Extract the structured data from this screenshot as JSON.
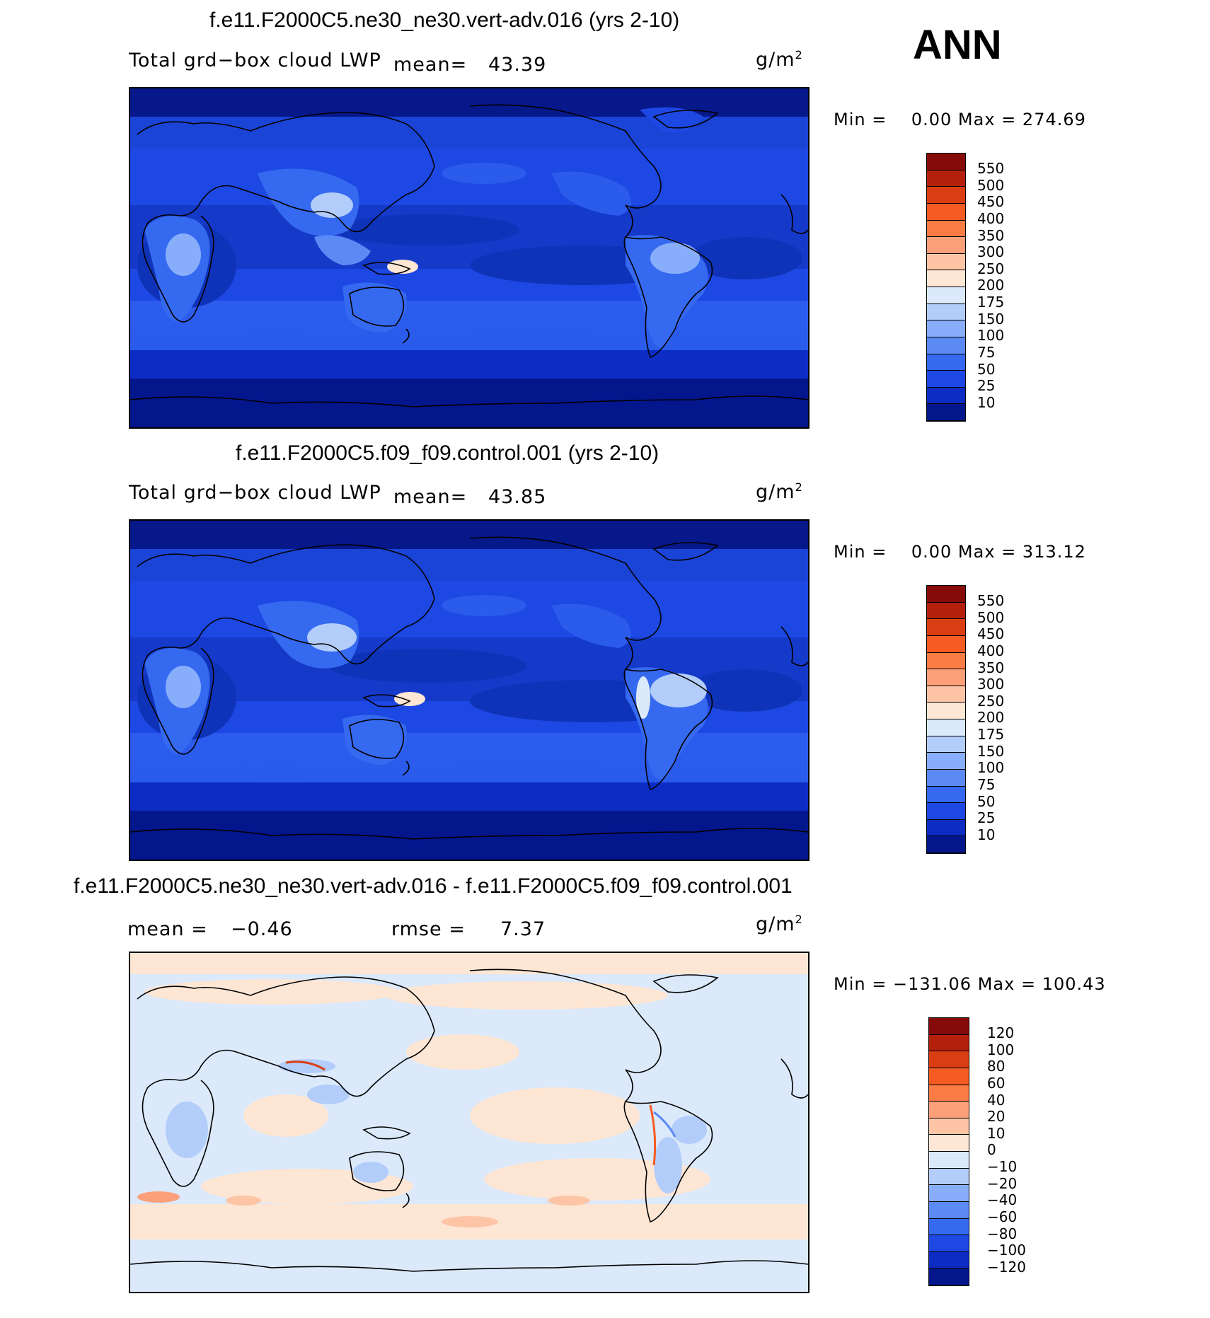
{
  "season": "ANN",
  "panels": [
    {
      "title": "f.e11.F2000C5.ne30_ne30.vert-adv.016 (yrs 2-10)",
      "variable": "Total grd−box cloud LWP",
      "stat1_label": "mean=",
      "stat1_value": "43.39",
      "units_base": "g/m",
      "units_exp": "2",
      "min_label": "Min =",
      "min_value": "0.00",
      "max_label": "Max =",
      "max_value": "274.69",
      "colorbar": {
        "labels": [
          "550",
          "500",
          "450",
          "400",
          "350",
          "300",
          "250",
          "200",
          "175",
          "150",
          "100",
          "75",
          "50",
          "25",
          "10"
        ],
        "colors": [
          "#870a0a",
          "#b5200c",
          "#db3d12",
          "#f55b22",
          "#fb7c45",
          "#fca07a",
          "#fdc4a6",
          "#fde6d4",
          "#dbe9fb",
          "#b3cdfb",
          "#88aefb",
          "#5b8af5",
          "#3569f0",
          "#1d48e3",
          "#0c2cc4",
          "#04168c"
        ]
      }
    },
    {
      "title": "f.e11.F2000C5.f09_f09.control.001 (yrs 2-10)",
      "variable": "Total grd−box cloud LWP",
      "stat1_label": "mean=",
      "stat1_value": "43.85",
      "units_base": "g/m",
      "units_exp": "2",
      "min_label": "Min =",
      "min_value": "0.00",
      "max_label": "Max =",
      "max_value": "313.12",
      "colorbar": {
        "labels": [
          "550",
          "500",
          "450",
          "400",
          "350",
          "300",
          "250",
          "200",
          "175",
          "150",
          "100",
          "75",
          "50",
          "25",
          "10"
        ],
        "colors": [
          "#870a0a",
          "#b5200c",
          "#db3d12",
          "#f55b22",
          "#fb7c45",
          "#fca07a",
          "#fdc4a6",
          "#fde6d4",
          "#dbe9fb",
          "#b3cdfb",
          "#88aefb",
          "#5b8af5",
          "#3569f0",
          "#1d48e3",
          "#0c2cc4",
          "#04168c"
        ]
      }
    },
    {
      "title": "f.e11.F2000C5.ne30_ne30.vert-adv.016 - f.e11.F2000C5.f09_f09.control.001",
      "stat1_label": "mean =",
      "stat1_value": "−0.46",
      "stat2_label": "rmse =",
      "stat2_value": "7.37",
      "units_base": "g/m",
      "units_exp": "2",
      "min_label": "Min =",
      "min_value": "−131.06",
      "max_label": "Max =",
      "max_value": "100.43",
      "colorbar": {
        "labels": [
          "120",
          "100",
          "80",
          "60",
          "40",
          "20",
          "10",
          "0",
          "−10",
          "−20",
          "−40",
          "−60",
          "−80",
          "−100",
          "−120"
        ],
        "colors": [
          "#870a0a",
          "#b5200c",
          "#db3d12",
          "#f55b22",
          "#fb7c45",
          "#fca07a",
          "#fdc4a6",
          "#fde6d4",
          "#dbe9fb",
          "#b3cdfb",
          "#88aefb",
          "#5b8af5",
          "#3569f0",
          "#1d48e3",
          "#0c2cc4",
          "#04168c"
        ]
      }
    }
  ]
}
